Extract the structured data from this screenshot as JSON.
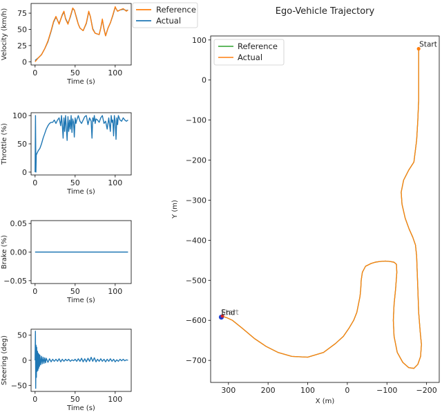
{
  "colors": {
    "reference": "#2ca02c",
    "actual": "#ff7f0e",
    "actual_blue": "#1f77b4",
    "ref_orange": "#ff7f0e",
    "start_marker": "#ff7f0e",
    "end_marker": "#1f3fd1"
  },
  "chart_data": [
    {
      "type": "line",
      "id": "velocity",
      "title": "",
      "xlabel": "Time (s)",
      "ylabel": "Velocity (km/h)",
      "xlim": [
        -5,
        120
      ],
      "ylim": [
        -5,
        90
      ],
      "xticks": [
        0,
        50,
        100
      ],
      "yticks": [
        0,
        25,
        50,
        75
      ],
      "legend": {
        "position": "outside-right",
        "entries": [
          "Reference",
          "Actual"
        ]
      },
      "series": [
        {
          "name": "Reference",
          "x": [
            0,
            4,
            8,
            12,
            16,
            20,
            23,
            26,
            30,
            34,
            36,
            38,
            41,
            44,
            47,
            49,
            52,
            54,
            56,
            58,
            60,
            64,
            67,
            69,
            72,
            75,
            80,
            82,
            84,
            86,
            88,
            91,
            94,
            97,
            100,
            101,
            103,
            106,
            110,
            114,
            116
          ],
          "values": [
            0,
            6,
            11,
            20,
            32,
            48,
            62,
            70,
            58,
            73,
            78,
            66,
            58,
            70,
            83,
            80,
            66,
            58,
            52,
            50,
            48,
            60,
            78,
            70,
            50,
            44,
            42,
            52,
            66,
            50,
            40,
            52,
            60,
            72,
            85,
            82,
            78,
            80,
            82,
            78,
            80
          ]
        },
        {
          "name": "Actual",
          "x": [
            0,
            4,
            8,
            12,
            16,
            20,
            23,
            26,
            30,
            34,
            36,
            38,
            41,
            44,
            47,
            49,
            52,
            54,
            56,
            58,
            60,
            64,
            67,
            69,
            72,
            75,
            80,
            82,
            84,
            86,
            88,
            91,
            94,
            97,
            100,
            101,
            103,
            106,
            110,
            114,
            116
          ],
          "values": [
            2,
            6,
            11,
            20,
            31,
            47,
            61,
            69,
            59,
            72,
            77,
            67,
            59,
            69,
            82,
            80,
            67,
            58,
            52,
            50,
            48,
            59,
            77,
            70,
            51,
            44,
            42,
            52,
            65,
            51,
            40,
            52,
            60,
            71,
            84,
            82,
            78,
            80,
            81,
            79,
            80
          ]
        }
      ]
    },
    {
      "type": "line",
      "id": "throttle",
      "xlabel": "Time (s)",
      "ylabel": "Throttle (%)",
      "xlim": [
        -5,
        120
      ],
      "ylim": [
        -5,
        105
      ],
      "xticks": [
        0,
        50,
        100
      ],
      "yticks": [
        0,
        50,
        100
      ],
      "series": [
        {
          "name": "Actual",
          "x": [
            0,
            0.5,
            1,
            1.5,
            2,
            4,
            6,
            8,
            10,
            12,
            14,
            16,
            18,
            20,
            22,
            24,
            26,
            28,
            30,
            32,
            33,
            34,
            35,
            36,
            37,
            38,
            39,
            40,
            41,
            42,
            43,
            44,
            45,
            46,
            47,
            48,
            49,
            50,
            51,
            52,
            54,
            56,
            58,
            60,
            62,
            64,
            66,
            68,
            70,
            71,
            72,
            73,
            74,
            75,
            76,
            78,
            80,
            82,
            84,
            86,
            88,
            90,
            92,
            94,
            95,
            96,
            97,
            98,
            99,
            100,
            101,
            102,
            103,
            104,
            106,
            108,
            110,
            112,
            114,
            116
          ],
          "values": [
            0,
            100,
            0,
            30,
            32,
            38,
            42,
            50,
            60,
            68,
            76,
            82,
            86,
            88,
            88,
            92,
            86,
            92,
            96,
            82,
            100,
            84,
            60,
            96,
            72,
            100,
            80,
            56,
            98,
            72,
            92,
            76,
            100,
            70,
            94,
            88,
            62,
            96,
            86,
            92,
            100,
            90,
            86,
            92,
            98,
            100,
            84,
            96,
            90,
            60,
            96,
            90,
            100,
            86,
            94,
            92,
            88,
            96,
            100,
            86,
            90,
            76,
            96,
            72,
            100,
            88,
            92,
            64,
            100,
            90,
            58,
            96,
            84,
            100,
            92,
            90,
            96,
            92,
            90,
            92
          ]
        }
      ]
    },
    {
      "type": "line",
      "id": "brake",
      "xlabel": "Time (s)",
      "ylabel": "Brake (%)",
      "xlim": [
        -5,
        120
      ],
      "ylim": [
        -0.055,
        0.055
      ],
      "xticks": [
        0,
        50,
        100
      ],
      "yticks": [
        -0.05,
        0.0,
        0.05
      ],
      "yticklabels": [
        "−0.05",
        "0.00",
        "0.05"
      ],
      "series": [
        {
          "name": "Actual",
          "x": [
            0,
            116
          ],
          "values": [
            0,
            0
          ]
        }
      ]
    },
    {
      "type": "line",
      "id": "steering",
      "xlabel": "Time (s)",
      "ylabel": "Steering (deg)",
      "xlim": [
        -5,
        120
      ],
      "ylim": [
        -62,
        62
      ],
      "xticks": [
        0,
        50,
        100
      ],
      "yticks": [
        -50,
        0,
        50
      ],
      "yticklabels": [
        "−50",
        "0",
        "50"
      ],
      "series": [
        {
          "name": "Actual",
          "x": [
            0,
            0.4,
            0.8,
            1.2,
            1.6,
            2,
            2.5,
            3,
            3.5,
            4,
            4.5,
            5,
            5.5,
            6,
            7,
            8,
            9,
            10,
            11,
            12,
            13,
            14,
            16,
            18,
            20,
            22,
            24,
            26,
            28,
            30,
            32,
            34,
            36,
            38,
            40,
            42,
            44,
            46,
            48,
            50,
            52,
            54,
            56,
            58,
            60,
            62,
            64,
            66,
            68,
            70,
            72,
            74,
            76,
            78,
            80,
            82,
            84,
            86,
            88,
            90,
            92,
            94,
            96,
            98,
            100,
            102,
            104,
            106,
            108,
            110,
            112,
            114,
            116
          ],
          "values": [
            0,
            58,
            -56,
            30,
            -34,
            26,
            -22,
            18,
            -20,
            14,
            -16,
            12,
            -12,
            10,
            -9,
            8,
            -7,
            6,
            -6,
            5,
            -5,
            4,
            -4,
            3,
            -3,
            2,
            -2,
            2,
            -2,
            3,
            -3,
            2,
            -2,
            2,
            -1,
            2,
            -2,
            1,
            -1,
            2,
            -2,
            3,
            -2,
            4,
            -3,
            3,
            -3,
            4,
            -2,
            6,
            -2,
            5,
            -3,
            2,
            -2,
            3,
            -2,
            2,
            -3,
            2,
            -2,
            3,
            -2,
            2,
            -3,
            1,
            -2,
            2,
            -1,
            2,
            -1,
            1,
            0
          ]
        }
      ]
    },
    {
      "type": "line",
      "id": "trajectory",
      "title": "Ego-Vehicle Trajectory",
      "xlabel": "X (m)",
      "ylabel": "Y (m)",
      "xlim": [
        345,
        -232
      ],
      "ylim": [
        -755,
        110
      ],
      "xticks": [
        300,
        200,
        100,
        0,
        -100,
        -200
      ],
      "xticklabels": [
        "300",
        "200",
        "100",
        "0",
        "−100",
        "−200"
      ],
      "yticks": [
        100,
        0,
        -100,
        -200,
        -300,
        -400,
        -500,
        -600,
        -700
      ],
      "yticklabels": [
        "100",
        "0",
        "−100",
        "−200",
        "−300",
        "−400",
        "−500",
        "−600",
        "−700"
      ],
      "legend": {
        "position": "top-left",
        "entries": [
          "Reference",
          "Actual"
        ]
      },
      "annotations": [
        {
          "text": "Start",
          "x": -180,
          "y": 78
        },
        {
          "text": "End",
          "x": 318,
          "y": -592
        }
      ],
      "series": [
        {
          "name": "Reference",
          "x": [
            -180,
            -180,
            -180,
            -180,
            -178,
            -175,
            -168,
            -155,
            -142,
            -136,
            -138,
            -146,
            -156,
            -165,
            -172,
            -175,
            -176,
            -178,
            -180,
            -184,
            -187,
            -185,
            -178,
            -168,
            -155,
            -140,
            -126,
            -118,
            -116,
            -118,
            -122,
            -125,
            -124,
            -118,
            -108,
            -96,
            -82,
            -70,
            -60,
            -46,
            -38,
            -35,
            -34,
            -32,
            -28,
            -24,
            -16,
            -4,
            10,
            30,
            60,
            100,
            140,
            175,
            205,
            235,
            265,
            290,
            305,
            312,
            315,
            318
          ],
          "y": [
            78,
            40,
            0,
            -50,
            -100,
            -150,
            -205,
            -225,
            -250,
            -280,
            -310,
            -345,
            -372,
            -392,
            -412,
            -440,
            -470,
            -520,
            -580,
            -630,
            -660,
            -690,
            -710,
            -720,
            -718,
            -705,
            -680,
            -640,
            -600,
            -560,
            -520,
            -480,
            -460,
            -455,
            -453,
            -452,
            -453,
            -455,
            -458,
            -465,
            -480,
            -500,
            -520,
            -540,
            -560,
            -580,
            -600,
            -620,
            -640,
            -658,
            -680,
            -692,
            -690,
            -680,
            -665,
            -645,
            -620,
            -600,
            -593,
            -591,
            -591,
            -592
          ]
        },
        {
          "name": "Actual",
          "x": [
            -180,
            -180,
            -180,
            -180,
            -178,
            -175,
            -168,
            -155,
            -142,
            -136,
            -138,
            -146,
            -156,
            -165,
            -172,
            -175,
            -176,
            -178,
            -180,
            -184,
            -187,
            -185,
            -178,
            -168,
            -155,
            -140,
            -126,
            -118,
            -116,
            -118,
            -122,
            -125,
            -124,
            -118,
            -108,
            -96,
            -82,
            -70,
            -60,
            -46,
            -38,
            -35,
            -34,
            -32,
            -28,
            -24,
            -16,
            -4,
            10,
            30,
            60,
            100,
            140,
            175,
            205,
            235,
            265,
            290,
            305,
            312,
            315,
            318
          ],
          "y": [
            78,
            40,
            0,
            -50,
            -100,
            -150,
            -205,
            -225,
            -250,
            -280,
            -310,
            -345,
            -372,
            -392,
            -412,
            -440,
            -470,
            -520,
            -580,
            -630,
            -660,
            -690,
            -710,
            -720,
            -718,
            -705,
            -680,
            -640,
            -600,
            -560,
            -520,
            -480,
            -460,
            -455,
            -453,
            -452,
            -453,
            -455,
            -458,
            -465,
            -480,
            -500,
            -520,
            -540,
            -560,
            -580,
            -600,
            -620,
            -640,
            -658,
            -680,
            -692,
            -690,
            -680,
            -665,
            -645,
            -620,
            -600,
            -593,
            -591,
            -591,
            -592
          ]
        }
      ]
    }
  ]
}
